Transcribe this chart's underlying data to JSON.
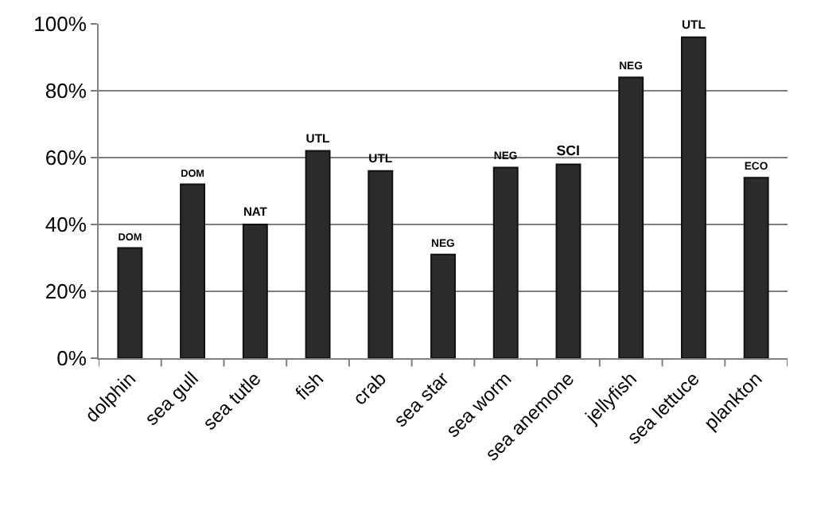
{
  "chart_data": {
    "type": "bar",
    "categories": [
      "dolphin",
      "sea gull",
      "sea tutle",
      "fish",
      "crab",
      "sea star",
      "sea worm",
      "sea anemone",
      "jellyfish",
      "sea lettuce",
      "plankton"
    ],
    "values": [
      33,
      52,
      40,
      62,
      56,
      31,
      57,
      58,
      84,
      96,
      54
    ],
    "value_labels": [
      "DOM",
      "DOM",
      "NAT",
      "UTL",
      "UTL",
      "NEG",
      "NEG",
      "SCI",
      "NEG",
      "UTL",
      "ECO"
    ],
    "color": "#2b2b2b",
    "ylim": [
      0,
      100
    ],
    "yticks": [
      {
        "value": 0,
        "label": "0%"
      },
      {
        "value": 20,
        "label": "20%"
      },
      {
        "value": 40,
        "label": "40%"
      },
      {
        "value": 60,
        "label": "60%"
      },
      {
        "value": 80,
        "label": "80%"
      },
      {
        "value": 100,
        "label": "100%"
      }
    ],
    "grid": "y",
    "legend": false
  }
}
